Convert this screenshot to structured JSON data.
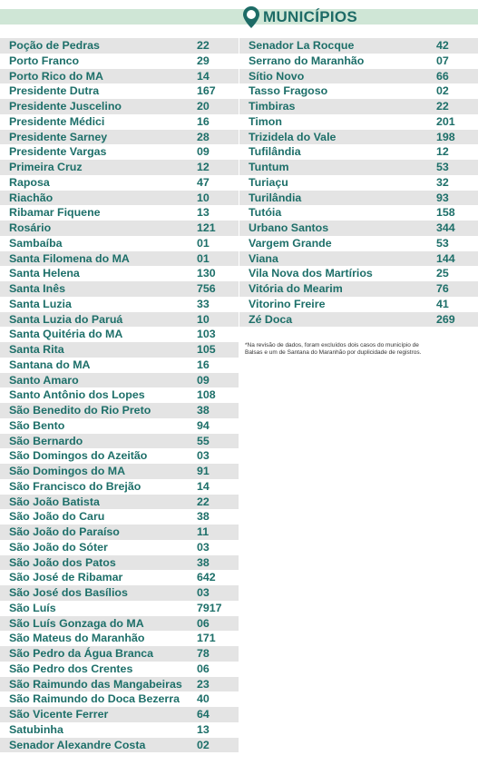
{
  "header": {
    "title": "MUNICÍPIOS"
  },
  "left_table": {
    "rows": [
      [
        "Poção de Pedras",
        "22"
      ],
      [
        "Porto Franco",
        "29"
      ],
      [
        "Porto Rico do MA",
        "14"
      ],
      [
        "Presidente Dutra",
        "167"
      ],
      [
        "Presidente Juscelino",
        "20"
      ],
      [
        "Presidente Médici",
        "16"
      ],
      [
        "Presidente Sarney",
        "28"
      ],
      [
        "Presidente Vargas",
        "09"
      ],
      [
        "Primeira Cruz",
        "12"
      ],
      [
        "Raposa",
        "47"
      ],
      [
        "Riachão",
        "10"
      ],
      [
        "Ribamar Fiquene",
        "13"
      ],
      [
        "Rosário",
        "121"
      ],
      [
        "Sambaíba",
        "01"
      ],
      [
        "Santa Filomena do MA",
        "01"
      ],
      [
        "Santa Helena",
        "130"
      ],
      [
        "Santa Inês",
        "756"
      ],
      [
        "Santa Luzia",
        "33"
      ],
      [
        "Santa Luzia do Paruá",
        "10"
      ],
      [
        "Santa Quitéria do MA",
        "103"
      ],
      [
        "Santa Rita",
        "105"
      ],
      [
        "Santana do MA",
        "16"
      ],
      [
        "Santo Amaro",
        "09"
      ],
      [
        "Santo Antônio dos Lopes",
        "108"
      ],
      [
        "São Benedito do Rio Preto",
        "38"
      ],
      [
        "São Bento",
        "94"
      ],
      [
        "São Bernardo",
        "55"
      ],
      [
        "São Domingos do Azeitão",
        "03"
      ],
      [
        "São Domingos do MA",
        "91"
      ],
      [
        "São Francisco do Brejão",
        "14"
      ],
      [
        "São João Batista",
        "22"
      ],
      [
        "São João do Caru",
        "38"
      ],
      [
        "São João do Paraíso",
        "11"
      ],
      [
        "São João do Sóter",
        "03"
      ],
      [
        "São João dos Patos",
        "38"
      ],
      [
        "São José de Ribamar",
        "642"
      ],
      [
        "São José dos Basílios",
        "03"
      ],
      [
        "São Luís",
        "7917"
      ],
      [
        "São Luís Gonzaga do MA",
        "06"
      ],
      [
        "São Mateus do Maranhão",
        "171"
      ],
      [
        "São Pedro da Água Branca",
        "78"
      ],
      [
        "São Pedro dos Crentes",
        "06"
      ],
      [
        "São Raimundo das Mangabeiras",
        "23"
      ],
      [
        "São Raimundo do Doca Bezerra",
        "40"
      ],
      [
        "São Vicente Ferrer",
        "64"
      ],
      [
        "Satubinha",
        "13"
      ],
      [
        "Senador Alexandre Costa",
        "02"
      ]
    ]
  },
  "right_table": {
    "rows": [
      [
        "Senador La Rocque",
        "42"
      ],
      [
        "Serrano do Maranhão",
        "07"
      ],
      [
        "Sítio Novo",
        "66"
      ],
      [
        "Tasso Fragoso",
        "02"
      ],
      [
        "Timbiras",
        "22"
      ],
      [
        "Timon",
        "201"
      ],
      [
        "Trizidela do Vale",
        "198"
      ],
      [
        "Tufilândia",
        "12"
      ],
      [
        "Tuntum",
        "53"
      ],
      [
        "Turiaçu",
        "32"
      ],
      [
        "Turilândia",
        "93"
      ],
      [
        "Tutóia",
        "158"
      ],
      [
        "Urbano Santos",
        "344"
      ],
      [
        "Vargem Grande",
        "53"
      ],
      [
        "Viana",
        "144"
      ],
      [
        "Vila Nova dos Martírios",
        "25"
      ],
      [
        "Vitória do Mearim",
        "76"
      ],
      [
        "Vitorino Freire",
        "41"
      ],
      [
        "Zé Doca",
        "269"
      ]
    ]
  },
  "footnote": [
    "*Na revisão de dados, foram excluídos dois casos do município de",
    "Balsas e um de Santana do Maranhão por duplicidade de registros."
  ]
}
